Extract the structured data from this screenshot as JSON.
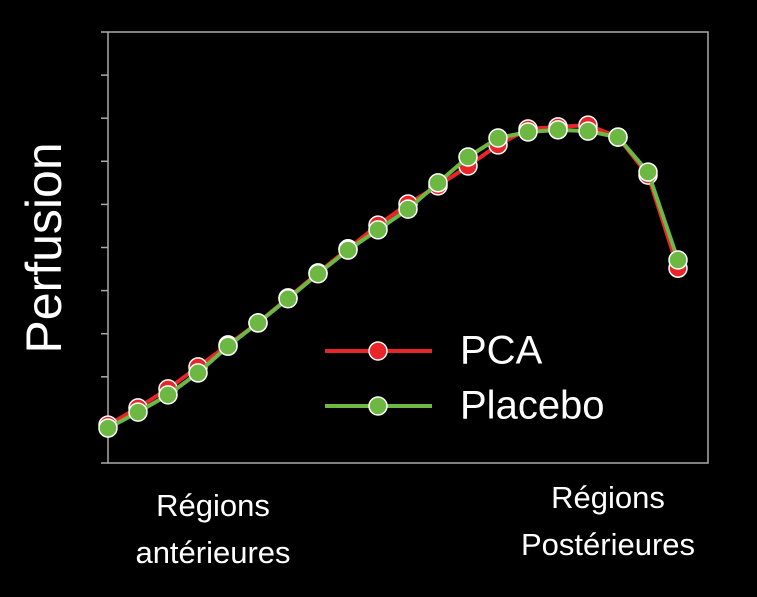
{
  "chart_data": {
    "type": "line",
    "y_label": "Perfusion",
    "x": [
      1,
      2,
      3,
      4,
      5,
      6,
      7,
      8,
      9,
      10,
      11,
      12,
      13,
      14,
      15,
      16,
      17,
      18,
      19,
      20
    ],
    "xlim": [
      1,
      21
    ],
    "ylim": [
      0,
      10
    ],
    "yticks": [
      0,
      1,
      2,
      3,
      4,
      5,
      6,
      7,
      8,
      9,
      10
    ],
    "series": [
      {
        "name": "PCA",
        "color": "#e8262a",
        "values": [
          0.88,
          1.28,
          1.72,
          2.23,
          2.74,
          3.25,
          3.83,
          4.41,
          4.97,
          5.52,
          6.01,
          6.43,
          6.89,
          7.38,
          7.75,
          7.8,
          7.84,
          7.56,
          6.68,
          4.52
        ]
      },
      {
        "name": "Placebo",
        "color": "#6db843",
        "values": [
          0.81,
          1.18,
          1.58,
          2.09,
          2.71,
          3.25,
          3.81,
          4.39,
          4.94,
          5.41,
          5.89,
          6.5,
          7.1,
          7.54,
          7.68,
          7.73,
          7.7,
          7.56,
          6.75,
          4.71
        ]
      }
    ],
    "annotations": [
      {
        "lines": [
          "Régions",
          "antérieures"
        ]
      },
      {
        "lines": [
          "Régions",
          "Postérieures"
        ]
      }
    ]
  }
}
